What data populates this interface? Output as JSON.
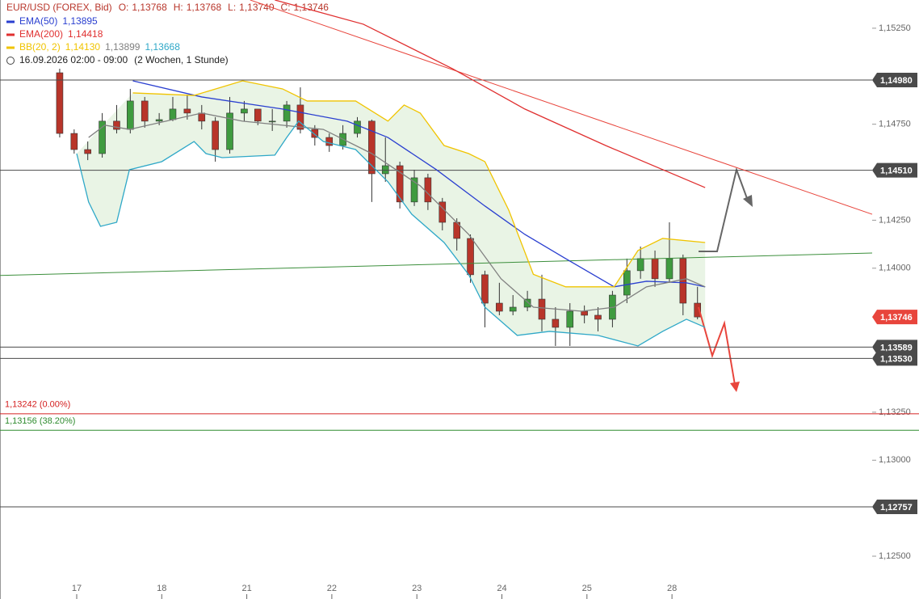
{
  "chart_data": {
    "type": "candlestick",
    "title": "EUR/USD (FOREX, Bid)",
    "quote": [
      {
        "label": "O:",
        "text": "1,13768"
      },
      {
        "label": "H:",
        "text": "1,13768"
      },
      {
        "label": "L:",
        "text": "1,13740"
      },
      {
        "label": "C:",
        "text": "1,13746"
      }
    ],
    "period": "16.09.2026 02:00 - 09:00",
    "range": "(2 Wochen, 1 Stunde)",
    "up_color": "#3f9b3f",
    "down_color": "#b8352a",
    "x": [
      -0.2,
      -0.03,
      0.13,
      0.3,
      0.47,
      0.63,
      0.8,
      0.97,
      1.13,
      1.3,
      1.47,
      1.63,
      1.8,
      1.97,
      2.13,
      2.3,
      2.47,
      2.63,
      2.8,
      2.97,
      3.13,
      3.3,
      3.47,
      3.63,
      3.8,
      3.97,
      4.13,
      4.3,
      4.47,
      4.63,
      4.8,
      4.97,
      5.13,
      5.3,
      5.47,
      5.63,
      5.8,
      5.97,
      6.13,
      6.3,
      6.47,
      6.63,
      6.8,
      6.97,
      7.13,
      7.3
    ],
    "open": [
      1.15018,
      1.14702,
      1.14618,
      1.14597,
      1.14766,
      1.14723,
      1.14871,
      1.14766,
      1.14774,
      1.14829,
      1.14808,
      1.14766,
      1.14618,
      1.14808,
      1.14829,
      1.14766,
      1.14766,
      1.1485,
      1.14723,
      1.14681,
      1.14639,
      1.14702,
      1.14766,
      1.14492,
      1.14534,
      1.14345,
      1.14471,
      1.14345,
      1.14239,
      1.14155,
      1.13966,
      1.13818,
      1.13776,
      1.13797,
      1.13839,
      1.13734,
      1.13692,
      1.13776,
      1.13755,
      1.13734,
      1.1386,
      1.13987,
      1.1405,
      1.13945,
      1.1405,
      1.13818
    ],
    "high": [
      1.15039,
      1.14723,
      1.1466,
      1.14808,
      1.1485,
      1.14934,
      1.14892,
      1.14808,
      1.14892,
      1.149,
      1.1485,
      1.14787,
      1.14892,
      1.14871,
      1.14829,
      1.14829,
      1.14871,
      1.14942,
      1.14745,
      1.14702,
      1.14745,
      1.14787,
      1.14774,
      1.14681,
      1.14555,
      1.14513,
      1.14492,
      1.14366,
      1.1426,
      1.14176,
      1.13987,
      1.13924,
      1.1386,
      1.13882,
      1.13966,
      1.13797,
      1.13818,
      1.13806,
      1.13797,
      1.13882,
      1.1405,
      1.14113,
      1.14092,
      1.14239,
      1.14071,
      1.13903
    ],
    "low": [
      1.14681,
      1.14597,
      1.14563,
      1.14576,
      1.14702,
      1.14702,
      1.14732,
      1.14745,
      1.14766,
      1.14774,
      1.14723,
      1.14555,
      1.14597,
      1.14766,
      1.14745,
      1.14715,
      1.14732,
      1.14702,
      1.14639,
      1.14606,
      1.14618,
      1.14681,
      1.14345,
      1.1445,
      1.14311,
      1.14324,
      1.14303,
      1.14197,
      1.14092,
      1.13924,
      1.13692,
      1.13755,
      1.13755,
      1.13776,
      1.13671,
      1.13595,
      1.13595,
      1.13713,
      1.13671,
      1.13692,
      1.13818,
      1.13945,
      1.13903,
      1.13924,
      1.13755,
      1.13734
    ],
    "close": [
      1.14702,
      1.14618,
      1.14597,
      1.14766,
      1.14723,
      1.14871,
      1.14766,
      1.14774,
      1.14829,
      1.14808,
      1.14766,
      1.14618,
      1.14808,
      1.14829,
      1.14766,
      1.14766,
      1.1485,
      1.14723,
      1.14681,
      1.14639,
      1.14702,
      1.14766,
      1.14492,
      1.14534,
      1.14345,
      1.14471,
      1.14345,
      1.14239,
      1.14155,
      1.13966,
      1.13818,
      1.13776,
      1.13797,
      1.13839,
      1.13734,
      1.13692,
      1.13776,
      1.13755,
      1.13734,
      1.1386,
      1.13987,
      1.1405,
      1.13945,
      1.1405,
      1.13818,
      1.13746
    ],
    "xlim": [
      -0.902,
      9.354
    ],
    "xticks": [
      {
        "value": 0,
        "label": "17"
      },
      {
        "value": 1,
        "label": "18"
      },
      {
        "value": 2,
        "label": "21"
      },
      {
        "value": 3,
        "label": "22"
      },
      {
        "value": 4,
        "label": "23"
      },
      {
        "value": 5,
        "label": "24"
      },
      {
        "value": 6,
        "label": "25"
      },
      {
        "value": 7,
        "label": "28"
      }
    ],
    "ylim": [
      1.12277,
      1.15397
    ],
    "yticks": [
      {
        "value": 1.1525,
        "label": "1,15250"
      },
      {
        "value": 1.1475,
        "label": "1,14750"
      },
      {
        "value": 1.1425,
        "label": "1,14250"
      },
      {
        "value": 1.14,
        "label": "1,14000"
      },
      {
        "value": 1.1325,
        "label": "1,13250"
      },
      {
        "value": 1.13,
        "label": "1,13000"
      },
      {
        "value": 1.125,
        "label": "1,12500"
      }
    ],
    "indicators": [
      {
        "name": "EMA(50)",
        "lines": [
          {
            "color": "#2a3fd0",
            "legend_value": "1,13895",
            "x": [
              0.66,
              1.47,
              2.42,
              3.18,
              3.66,
              4.23,
              4.8,
              5.27,
              5.75,
              6.32,
              6.7,
              7.17,
              7.39
            ],
            "values": [
              1.14976,
              1.14892,
              1.14829,
              1.14766,
              1.14681,
              1.14513,
              1.14324,
              1.14176,
              1.1405,
              1.13903,
              1.13932,
              1.13924,
              1.13903
            ]
          }
        ]
      },
      {
        "name": "EMA(200)",
        "lines": [
          {
            "color": "#e03030",
            "legend_value": "1,14418",
            "x": [
              2.33,
              3.37,
              4.42,
              5.27,
              6.22,
              7.39
            ],
            "values": [
              1.15397,
              1.15271,
              1.15039,
              1.14829,
              1.14639,
              1.1442
            ]
          }
        ]
      },
      {
        "name": "BB(20, 2)",
        "lines": [
          {
            "color": "#f0c400",
            "legend_value": "1,14130",
            "x": [
              0.66,
              1.38,
              1.95,
              2.42,
              2.71,
              3.28,
              3.66,
              3.85,
              4.04,
              4.32,
              4.61,
              4.8,
              5.08,
              5.37,
              5.75,
              6.32,
              6.6,
              6.89,
              7.39
            ],
            "values": [
              1.14913,
              1.149,
              1.14976,
              1.14934,
              1.14871,
              1.14871,
              1.14766,
              1.1485,
              1.14808,
              1.14639,
              1.14597,
              1.14555,
              1.14303,
              1.13968,
              1.13903,
              1.13903,
              1.14092,
              1.14155,
              1.14134
            ]
          },
          {
            "color": "#808080",
            "legend_value": "1,13899",
            "x": [
              0.14,
              0.33,
              0.62,
              1.47,
              1.95,
              2.42,
              2.9,
              3.47,
              4.04,
              4.61,
              4.99,
              5.37,
              5.94,
              6.32,
              6.7,
              7.17,
              7.39
            ],
            "values": [
              1.14681,
              1.14745,
              1.14723,
              1.14808,
              1.14766,
              1.14745,
              1.14723,
              1.14597,
              1.14429,
              1.14176,
              1.13945,
              1.13797,
              1.13776,
              1.13797,
              1.13903,
              1.13945,
              1.13903
            ]
          },
          {
            "color": "#2fa8c8",
            "legend_value": "1,13668",
            "x": [
              0,
              0.14,
              0.28,
              0.47,
              0.62,
              1.0,
              1.38,
              1.52,
              1.71,
              2.33,
              2.47,
              2.61,
              2.9,
              3.28,
              3.66,
              3.94,
              4.32,
              4.61,
              4.8,
              5.18,
              5.56,
              6.13,
              6.6,
              6.89,
              7.17,
              7.39
            ],
            "values": [
              1.14597,
              1.14345,
              1.14218,
              1.14239,
              1.14513,
              1.14555,
              1.1466,
              1.14597,
              1.14576,
              1.14589,
              1.14681,
              1.14766,
              1.1466,
              1.14618,
              1.1445,
              1.14281,
              1.14134,
              1.13966,
              1.13797,
              1.1365,
              1.13671,
              1.1365,
              1.13595,
              1.13671,
              1.13734,
              1.13692
            ]
          }
        ]
      }
    ],
    "band_fill": "#dff0da",
    "levels": [
      {
        "value": 1.1498,
        "label": "1,14980"
      },
      {
        "value": 1.1451,
        "label": "1,14510"
      },
      {
        "value": 1.13589,
        "label": "1,13589"
      },
      {
        "value": 1.1353,
        "label": "1,13530"
      },
      {
        "value": 1.12757,
        "label": "1,12757"
      }
    ],
    "level_color": "#4a4a4a",
    "current": {
      "value": 1.13746,
      "label": "1,13746",
      "color": "#e8453c"
    },
    "fib": [
      {
        "value": 1.13242,
        "label": "1,13242 (0.00%)",
        "color": "#d42020"
      },
      {
        "value": 1.13156,
        "label": "1,13156 (38.20%)",
        "color": "#2e8b2e"
      }
    ],
    "trendlines": [
      {
        "color": "#3c8f3c",
        "x": [
          -0.902,
          9.354
        ],
        "values": [
          1.13962,
          1.14079
        ]
      },
      {
        "color": "#e8453c",
        "x": [
          2.04,
          9.354
        ],
        "values": [
          1.15397,
          1.14281
        ]
      }
    ]
  }
}
